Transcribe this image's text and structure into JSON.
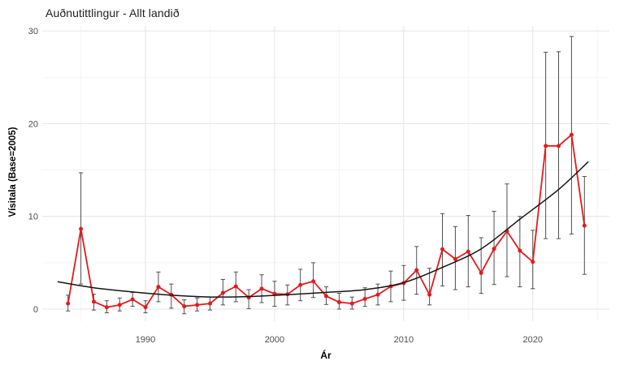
{
  "title": "Auðnutittlingur - Allt landið",
  "chart_data": {
    "type": "line",
    "title": "Auðnutittlingur - Allt landið",
    "xlabel": "Ár",
    "ylabel": "Vísitala (Base=2005)",
    "xlim": [
      1983,
      2025.6
    ],
    "ylim": [
      -1.3,
      30.5
    ],
    "x_ticks": [
      1990,
      2000,
      2010,
      2020
    ],
    "y_ticks": [
      0,
      10,
      20,
      30
    ],
    "x_minor_ticks": [
      1985,
      1995,
      2005,
      2015,
      2025
    ],
    "y_minor_ticks": [
      5,
      15,
      25
    ],
    "grid": true,
    "legend_position": "none",
    "series": [
      {
        "name": "index",
        "style": "line+markers+errorbars",
        "color": "#e41a1c",
        "errorbar_color": "#4f4f4f",
        "x": [
          1984,
          1985,
          1986,
          1987,
          1988,
          1989,
          1990,
          1991,
          1992,
          1993,
          1994,
          1995,
          1996,
          1997,
          1998,
          1999,
          2000,
          2001,
          2002,
          2003,
          2004,
          2005,
          2006,
          2007,
          2008,
          2009,
          2010,
          2011,
          2012,
          2013,
          2014,
          2015,
          2016,
          2017,
          2018,
          2019,
          2020,
          2021,
          2022,
          2023,
          2024
        ],
        "y": [
          0.6,
          8.65,
          0.8,
          0.2,
          0.45,
          1.05,
          0.2,
          2.4,
          1.55,
          0.3,
          0.45,
          0.6,
          1.75,
          2.45,
          1.25,
          2.2,
          1.65,
          1.6,
          2.6,
          3.0,
          1.4,
          0.75,
          0.6,
          1.1,
          1.55,
          2.45,
          2.8,
          4.2,
          1.55,
          6.45,
          5.4,
          6.2,
          3.9,
          6.5,
          8.4,
          6.3,
          5.1,
          17.6,
          17.6,
          18.8,
          9.0
        ],
        "err_low": [
          -0.2,
          2.7,
          -0.1,
          -0.4,
          -0.2,
          0.3,
          -0.4,
          0.8,
          0.1,
          -0.5,
          -0.2,
          -0.1,
          0.45,
          0.8,
          0.05,
          0.7,
          0.3,
          0.45,
          0.9,
          1.25,
          0.5,
          0.0,
          0.0,
          0.3,
          0.45,
          0.8,
          0.95,
          1.6,
          0.45,
          2.5,
          2.1,
          2.4,
          1.7,
          2.65,
          3.5,
          2.4,
          2.2,
          7.6,
          7.6,
          8.1,
          3.75
        ],
        "err_high": [
          1.5,
          14.7,
          1.6,
          0.9,
          1.2,
          1.8,
          0.9,
          4.0,
          2.7,
          1.0,
          1.2,
          1.3,
          3.2,
          4.0,
          2.1,
          3.7,
          3.0,
          2.6,
          4.3,
          5.0,
          2.4,
          1.7,
          1.3,
          2.3,
          2.7,
          4.1,
          4.7,
          6.75,
          4.4,
          10.3,
          8.9,
          10.1,
          7.7,
          10.55,
          13.5,
          10.0,
          8.5,
          27.7,
          27.75,
          29.4,
          14.3
        ]
      },
      {
        "name": "trend",
        "style": "smooth-line",
        "color": "#141414",
        "x": [
          1983.2,
          1986,
          1989,
          1992,
          1995,
          1998,
          2001,
          2004,
          2007,
          2010,
          2013,
          2016,
          2019,
          2022,
          2024.3
        ],
        "y": [
          2.95,
          2.3,
          1.85,
          1.5,
          1.3,
          1.35,
          1.55,
          1.8,
          2.1,
          2.85,
          4.5,
          6.5,
          9.7,
          12.9,
          15.9
        ]
      }
    ]
  },
  "colors": {
    "background": "#ffffff",
    "grid_major": "#e4e4e4",
    "grid_minor": "#f1f1f1",
    "tick_label": "#4d4d4d",
    "series_red": "#e41a1c",
    "errorbar": "#4f4f4f",
    "trend": "#141414"
  }
}
